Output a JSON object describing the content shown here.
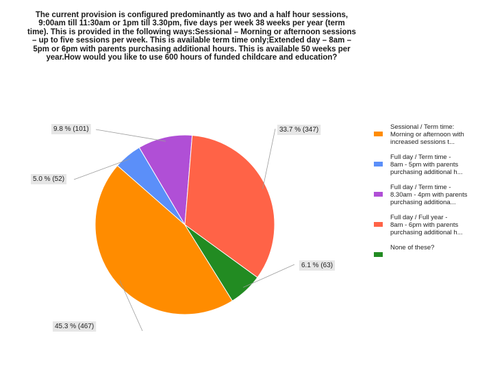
{
  "chart_data": {
    "type": "pie",
    "title": "The current provision is configured predominantly as two and a half hour sessions, 9:00am till 11:30am or 1pm till 3.30pm, five days per week 38 weeks per year (term time). This is provided in the following ways:Sessional – Morning or afternoon sessions – up to five sessions per week. This is available term time only;Extended day – 8am – 5pm or 6pm with parents purchasing additional hours. This is available 50 weeks per year.How would you like to use 600 hours of funded childcare and education?",
    "legend_position": "right",
    "slices": [
      {
        "label": "Sessional / Term time:\nMorning or afternoon with\nincreased sessions t...",
        "value": 467,
        "percent": 45.3,
        "display": "45.3 % (467)",
        "color": "#ff8c00"
      },
      {
        "label": "Full day / Term time -\n8am - 5pm with parents\npurchasing additional h...",
        "value": 52,
        "percent": 5.0,
        "display": "5.0 % (52)",
        "color": "#5b8ff9"
      },
      {
        "label": "Full day / Term time -\n8.30am - 4pm with parents\npurchasing additiona...",
        "value": 101,
        "percent": 9.8,
        "display": "9.8 % (101)",
        "color": "#b04fd6"
      },
      {
        "label": "Full day / Full year -\n8am - 6pm with parents\npurchasing additional h...",
        "value": 347,
        "percent": 33.7,
        "display": "33.7 % (347)",
        "color": "#ff6347"
      },
      {
        "label": "None of these?",
        "value": 63,
        "percent": 6.1,
        "display": "6.1 % (63)",
        "color": "#228b22"
      }
    ]
  }
}
